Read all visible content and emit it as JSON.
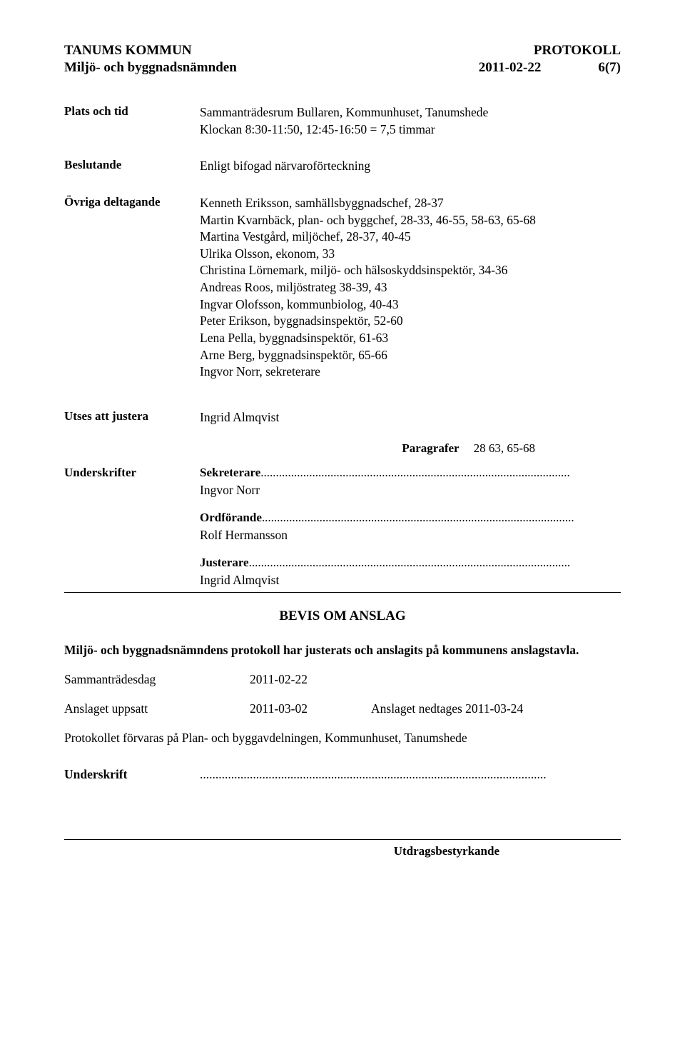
{
  "header": {
    "org": "TANUMS KOMMUN",
    "doc": "PROTOKOLL",
    "committee": "Miljö- och byggnadsnämnden",
    "date": "2011-02-22",
    "page": "6(7)"
  },
  "plats_och_tid": {
    "label": "Plats och tid",
    "line1": "Sammanträdesrum Bullaren, Kommunhuset, Tanumshede",
    "line2": "Klockan 8:30-11:50, 12:45-16:50 = 7,5 timmar"
  },
  "beslutande": {
    "label": "Beslutande",
    "value": "Enligt bifogad närvaroförteckning"
  },
  "ovriga": {
    "label": "Övriga deltagande",
    "lines": [
      "Kenneth Eriksson, samhällsbyggnadschef, 28-37",
      "Martin Kvarnbäck, plan- och byggchef, 28-33, 46-55, 58-63, 65-68",
      "Martina Vestgård, miljöchef, 28-37, 40-45",
      "Ulrika Olsson, ekonom, 33",
      "Christina Lörnemark, miljö- och hälsoskyddsinspektör, 34-36",
      "Andreas Roos, miljöstrateg 38-39, 43",
      "Ingvar Olofsson, kommunbiolog, 40-43",
      "Peter Erikson, byggnadsinspektör, 52-60",
      "Lena Pella, byggnadsinspektör, 61-63",
      "Arne Berg, byggnadsinspektör, 65-66",
      "Ingvor Norr, sekreterare"
    ]
  },
  "utses": {
    "label": "Utses att justera",
    "value": "Ingrid Almqvist"
  },
  "paragrafer": {
    "label": "Paragrafer",
    "value": "28 63, 65-68"
  },
  "underskrifter": {
    "label": "Underskrifter",
    "sekreterare_role": "Sekreterare",
    "sekreterare_dots": "......................................................................................................",
    "sekreterare_name": "Ingvor Norr",
    "ordforande_role": "Ordförande",
    "ordforande_dots": ".......................................................................................................",
    "ordforande_name": "Rolf Hermansson",
    "justerare_role": "Justerare",
    "justerare_dots": "..........................................................................................................",
    "justerare_name": "Ingrid Almqvist"
  },
  "bevis": {
    "title": "BEVIS OM ANSLAG",
    "line1_pre": "Miljö- och byggnadsnämndens protokoll ",
    "line1_bold": " har justerats och anslagits på kommunens anslagstavla.",
    "sammantradesdag_label": "Sammanträdesdag",
    "sammantradesdag_value": "2011-02-22",
    "anslaget_uppsatt_label": "Anslaget uppsatt",
    "anslaget_uppsatt_value": "2011-03-02",
    "anslaget_nedtages": "Anslaget nedtages 2011-03-24",
    "forvaras": "Protokollet förvaras på Plan- och byggavdelningen, Kommunhuset, Tanumshede",
    "underskrift_label": "Underskrift",
    "underskrift_dots": "..............................................................................................................."
  },
  "footer": {
    "label": "Utdragsbestyrkande"
  }
}
